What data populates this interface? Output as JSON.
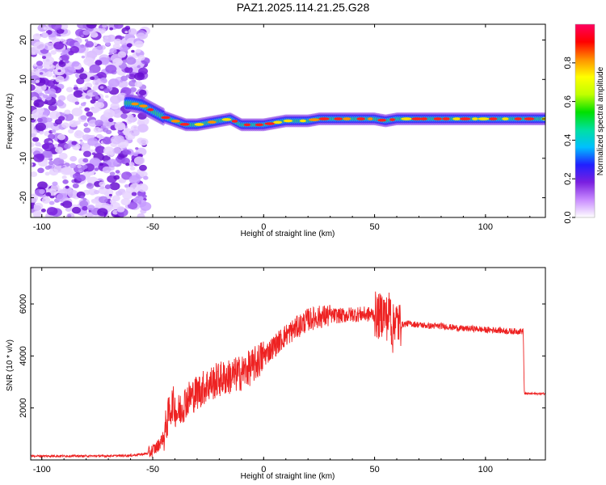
{
  "title": "PAZ1.2025.114.21.25.G28",
  "chart_data": [
    {
      "type": "heatmap",
      "xlabel": "Height of straight line (km)",
      "ylabel": "Frequency (Hz)",
      "xlim": [
        -105,
        127
      ],
      "ylim": [
        -25,
        24
      ],
      "xticks": [
        -100,
        -50,
        0,
        50,
        100
      ],
      "yticks": [
        20,
        10,
        0,
        -10,
        -20
      ],
      "ridge": {
        "x": [
          -60,
          -55,
          -50,
          -45,
          -40,
          -35,
          -30,
          -25,
          -20,
          -15,
          -10,
          -5,
          0,
          5,
          10,
          15,
          20,
          25,
          30,
          35,
          40,
          45,
          50,
          55,
          60,
          65,
          70,
          75,
          80,
          85,
          90,
          95,
          100,
          105,
          110,
          115,
          120,
          127
        ],
        "y": [
          4,
          3.5,
          2,
          0.5,
          -0.5,
          -1.5,
          -1.5,
          -1,
          -0.5,
          0,
          -1.5,
          -1.5,
          -1.5,
          -1,
          -0.5,
          -0.5,
          -0.5,
          0,
          0,
          0,
          0,
          0,
          0,
          -0.5,
          0,
          0,
          0,
          0,
          0,
          0,
          0,
          0,
          0,
          0,
          0,
          0,
          0,
          0
        ]
      },
      "noise_region_x": [
        -105,
        -53
      ],
      "colorbar": {
        "label": "Normalized spectral amplitude",
        "ticks": [
          "0.0",
          "0.2",
          "0.4",
          "0.6",
          "0.8"
        ],
        "range": [
          0,
          1
        ],
        "colors": [
          "#ffffff",
          "#c98cff",
          "#7a1fe0",
          "#2020ff",
          "#00c0ff",
          "#00e0a0",
          "#00e000",
          "#c0ff00",
          "#ffff00",
          "#ff9000",
          "#ff0000",
          "#ff0060"
        ]
      }
    },
    {
      "type": "line",
      "xlabel": "Height of straight line (km)",
      "ylabel": "SNR (10 * v/v)",
      "xlim": [
        -105,
        127
      ],
      "ylim": [
        0,
        7400
      ],
      "xticks": [
        -100,
        -50,
        0,
        50,
        100
      ],
      "yticks": [
        2000,
        4000,
        6000
      ],
      "color": "#ee2222",
      "series": {
        "x": [
          -105,
          -90,
          -75,
          -60,
          -52,
          -48,
          -45,
          -43,
          -41,
          -39,
          -37,
          -35,
          -30,
          -25,
          -20,
          -15,
          -10,
          -5,
          0,
          5,
          10,
          15,
          20,
          25,
          30,
          35,
          40,
          45,
          50,
          52,
          54,
          56,
          57,
          58,
          59,
          60,
          62,
          65,
          70,
          75,
          80,
          85,
          90,
          95,
          100,
          105,
          110,
          115,
          117,
          117.5,
          120,
          127
        ],
        "y": [
          150,
          150,
          150,
          170,
          250,
          500,
          900,
          1700,
          2200,
          1800,
          2000,
          2300,
          2600,
          2900,
          3100,
          3200,
          3350,
          3600,
          4000,
          4400,
          4800,
          5100,
          5400,
          5500,
          5550,
          5550,
          5600,
          5600,
          5600,
          5500,
          5700,
          5400,
          5900,
          4800,
          5500,
          5300,
          5200,
          5250,
          5200,
          5150,
          5150,
          5100,
          5050,
          5050,
          5000,
          5000,
          4950,
          4950,
          4950,
          2550,
          2550,
          2550
        ]
      }
    }
  ]
}
